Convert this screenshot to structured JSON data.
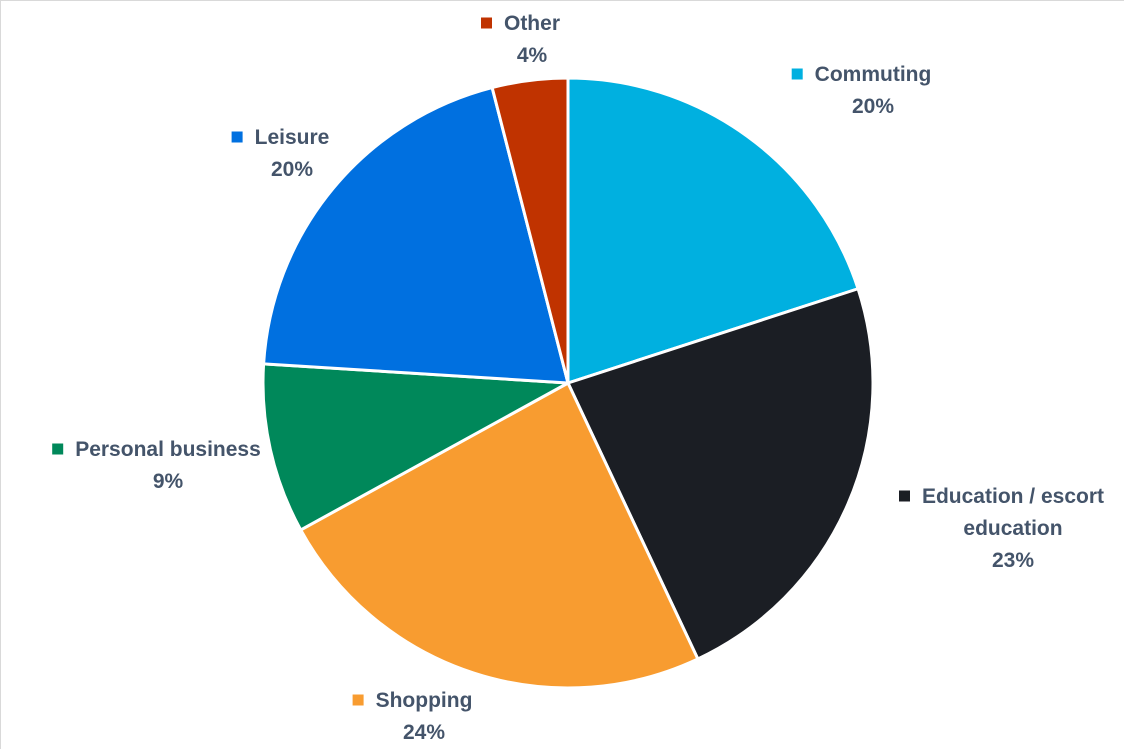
{
  "chart_data": {
    "type": "pie",
    "title": "",
    "legend": "none",
    "start_angle_deg": 0,
    "direction": "clockwise",
    "slices": [
      {
        "category": "Commuting",
        "lines": [
          "Commuting"
        ],
        "value": 20,
        "value_label": "20%",
        "color": "#00b0e0"
      },
      {
        "category": "Education / escort education",
        "lines": [
          "Education / escort",
          "education"
        ],
        "value": 23,
        "value_label": "23%",
        "color": "#1b1e24"
      },
      {
        "category": "Shopping",
        "lines": [
          "Shopping"
        ],
        "value": 24,
        "value_label": "24%",
        "color": "#f89c30"
      },
      {
        "category": "Personal business",
        "lines": [
          "Personal business"
        ],
        "value": 9,
        "value_label": "9%",
        "color": "#00885a"
      },
      {
        "category": "Leisure",
        "lines": [
          "Leisure"
        ],
        "value": 20,
        "value_label": "20%",
        "color": "#0070e0"
      },
      {
        "category": "Other",
        "lines": [
          "Other"
        ],
        "value": 4,
        "value_label": "4%",
        "color": "#c03300"
      }
    ]
  }
}
